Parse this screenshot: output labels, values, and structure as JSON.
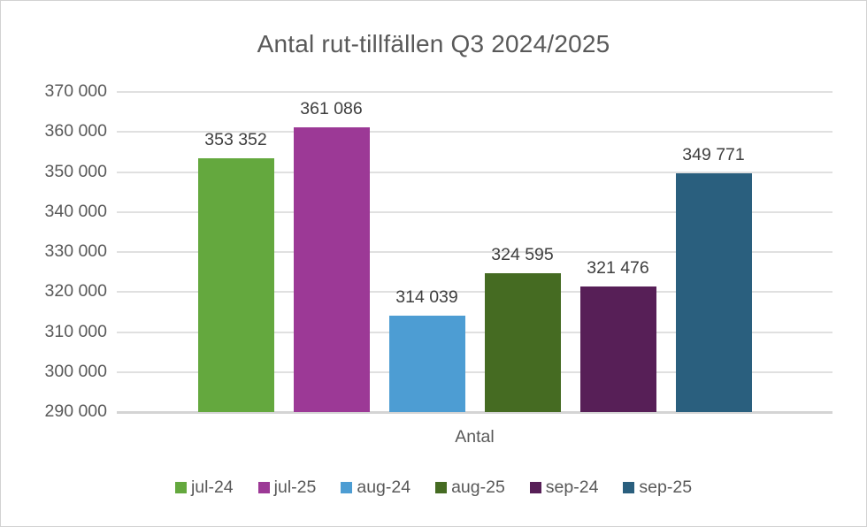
{
  "chart_data": {
    "type": "bar",
    "title": "Antal rut-tillfällen Q3 2024/2025",
    "categories": [
      "Antal"
    ],
    "series": [
      {
        "name": "jul-24",
        "value": 353352,
        "label": "353 352",
        "color": "#64a83e"
      },
      {
        "name": "jul-25",
        "value": 361086,
        "label": "361 086",
        "color": "#9c3996"
      },
      {
        "name": "aug-24",
        "value": 314039,
        "label": "314 039",
        "color": "#4d9dd3"
      },
      {
        "name": "aug-25",
        "value": 324595,
        "label": "324 595",
        "color": "#456b22"
      },
      {
        "name": "sep-24",
        "value": 321476,
        "label": "321 476",
        "color": "#571f57"
      },
      {
        "name": "sep-25",
        "value": 349771,
        "label": "349 771",
        "color": "#2a5f7e"
      }
    ],
    "y_ticks": [
      {
        "value": 370000,
        "label": "370 000"
      },
      {
        "value": 360000,
        "label": "360 000"
      },
      {
        "value": 350000,
        "label": "350 000"
      },
      {
        "value": 340000,
        "label": "340 000"
      },
      {
        "value": 330000,
        "label": "330 000"
      },
      {
        "value": 320000,
        "label": "320 000"
      },
      {
        "value": 310000,
        "label": "310 000"
      },
      {
        "value": 300000,
        "label": "300 000"
      },
      {
        "value": 290000,
        "label": "290 000"
      }
    ],
    "ylim": [
      290000,
      370000
    ],
    "grid": true,
    "legend_position": "bottom",
    "colors": {
      "title_text": "#595959",
      "axis_text": "#595959",
      "data_label_text": "#3f3f3f",
      "gridline": "#e0e0e0",
      "axis_line": "#d4d4d4",
      "border": "#d2d2d2",
      "background": "#ffffff"
    }
  }
}
